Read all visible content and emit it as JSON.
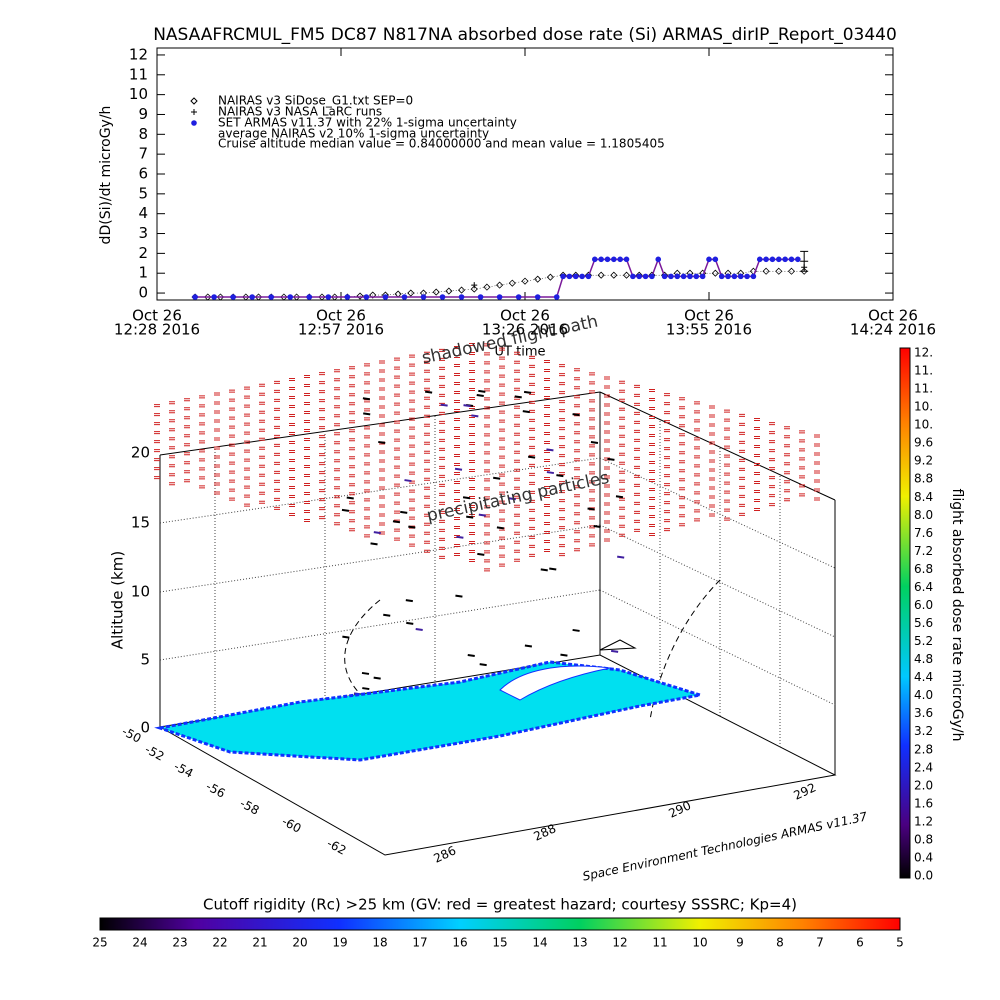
{
  "chart_data": {
    "type": "scatter",
    "title": "NASAAFRCMUL_FM5 DC87 N817NA absorbed dose rate (Si) ARMAS_dirIP_Report_03440",
    "x_label": "UT time",
    "y_label": "dD(Si)/dt microGy/h",
    "annotation": "Cruise altitude median value = 0.84000000 and mean value = 1.1805405",
    "xlim": [
      "2016-10-26 12:28",
      "2016-10-26 14:24"
    ],
    "xticks": [
      {
        "value": "2016-10-26 12:28",
        "label": [
          "Oct 26",
          "12:28 2016"
        ]
      },
      {
        "value": "2016-10-26 12:57",
        "label": [
          "Oct 26",
          "12:57 2016"
        ]
      },
      {
        "value": "2016-10-26 13:26",
        "label": [
          "Oct 26",
          "13:26 2016"
        ]
      },
      {
        "value": "2016-10-26 13:55",
        "label": [
          "Oct 26",
          "13:55 2016"
        ]
      },
      {
        "value": "2016-10-26 14:24",
        "label": [
          "Oct 26",
          "14:24 2016"
        ]
      }
    ],
    "ylim": [
      -0.35,
      12.35
    ],
    "yticks": [
      0,
      1,
      2,
      3,
      4,
      5,
      6,
      7,
      8,
      9,
      10,
      11,
      12
    ],
    "series": [
      {
        "name": "NAIRAS v3 SiDose_G1.txt SEP=0",
        "marker": "diamond",
        "color": "#000000",
        "x": [
          "2016-10-26 12:34",
          "2016-10-26 12:36",
          "2016-10-26 12:38",
          "2016-10-26 12:40",
          "2016-10-26 12:42",
          "2016-10-26 12:44",
          "2016-10-26 12:46",
          "2016-10-26 12:48",
          "2016-10-26 12:50",
          "2016-10-26 12:52",
          "2016-10-26 12:54",
          "2016-10-26 12:56",
          "2016-10-26 12:58",
          "2016-10-26 13:00",
          "2016-10-26 13:02",
          "2016-10-26 13:04",
          "2016-10-26 13:06",
          "2016-10-26 13:08",
          "2016-10-26 13:10",
          "2016-10-26 13:12",
          "2016-10-26 13:14",
          "2016-10-26 13:16",
          "2016-10-26 13:18",
          "2016-10-26 13:20",
          "2016-10-26 13:22",
          "2016-10-26 13:24",
          "2016-10-26 13:26",
          "2016-10-26 13:28",
          "2016-10-26 13:30",
          "2016-10-26 13:32",
          "2016-10-26 13:34",
          "2016-10-26 13:36",
          "2016-10-26 13:38",
          "2016-10-26 13:40",
          "2016-10-26 13:42",
          "2016-10-26 13:44",
          "2016-10-26 13:46",
          "2016-10-26 13:48",
          "2016-10-26 13:50",
          "2016-10-26 13:52",
          "2016-10-26 13:54",
          "2016-10-26 13:56",
          "2016-10-26 13:58",
          "2016-10-26 14:00",
          "2016-10-26 14:02",
          "2016-10-26 14:04",
          "2016-10-26 14:06",
          "2016-10-26 14:08",
          "2016-10-26 14:10"
        ],
        "values": [
          -0.2,
          -0.2,
          -0.2,
          -0.2,
          -0.2,
          -0.2,
          -0.2,
          -0.2,
          -0.2,
          -0.2,
          -0.2,
          -0.2,
          -0.2,
          -0.15,
          -0.1,
          -0.1,
          -0.05,
          0,
          0,
          0.05,
          0.1,
          0.15,
          0.2,
          0.3,
          0.4,
          0.5,
          0.6,
          0.7,
          0.8,
          0.9,
          0.9,
          0.9,
          0.9,
          0.9,
          0.9,
          0.9,
          0.9,
          0.9,
          1.0,
          1.0,
          1.0,
          1.0,
          1.0,
          1.0,
          1.1,
          1.1,
          1.1,
          1.1,
          1.1
        ]
      },
      {
        "name": "NAIRAS v3 NASA LaRC runs",
        "marker": "plus",
        "color": "#000000",
        "x": [
          "2016-10-26 13:18",
          "2016-10-26 14:10"
        ],
        "values": [
          0.4,
          1.3
        ]
      },
      {
        "name": "SET ARMAS v11.37 with 22% 1-sigma uncertainty",
        "marker": "circle",
        "color": "#1f1fe0",
        "line_color": "#7a1a9a",
        "x": [
          "2016-10-26 12:34",
          "2016-10-26 12:37",
          "2016-10-26 12:40",
          "2016-10-26 12:43",
          "2016-10-26 12:46",
          "2016-10-26 12:49",
          "2016-10-26 12:52",
          "2016-10-26 12:55",
          "2016-10-26 12:58",
          "2016-10-26 13:01",
          "2016-10-26 13:04",
          "2016-10-26 13:07",
          "2016-10-26 13:10",
          "2016-10-26 13:13",
          "2016-10-26 13:16",
          "2016-10-26 13:19",
          "2016-10-26 13:22",
          "2016-10-26 13:25",
          "2016-10-26 13:28",
          "2016-10-26 13:31",
          "2016-10-26 13:32",
          "2016-10-26 13:33",
          "2016-10-26 13:34",
          "2016-10-26 13:35",
          "2016-10-26 13:36",
          "2016-10-26 13:37",
          "2016-10-26 13:38",
          "2016-10-26 13:39",
          "2016-10-26 13:40",
          "2016-10-26 13:41",
          "2016-10-26 13:42",
          "2016-10-26 13:43",
          "2016-10-26 13:44",
          "2016-10-26 13:45",
          "2016-10-26 13:46",
          "2016-10-26 13:47",
          "2016-10-26 13:48",
          "2016-10-26 13:49",
          "2016-10-26 13:50",
          "2016-10-26 13:51",
          "2016-10-26 13:52",
          "2016-10-26 13:53",
          "2016-10-26 13:54",
          "2016-10-26 13:55",
          "2016-10-26 13:56",
          "2016-10-26 13:57",
          "2016-10-26 13:58",
          "2016-10-26 13:59",
          "2016-10-26 14:00",
          "2016-10-26 14:01",
          "2016-10-26 14:02",
          "2016-10-26 14:03",
          "2016-10-26 14:04",
          "2016-10-26 14:05",
          "2016-10-26 14:06",
          "2016-10-26 14:07",
          "2016-10-26 14:08",
          "2016-10-26 14:09"
        ],
        "values": [
          -0.2,
          -0.2,
          -0.2,
          -0.2,
          -0.2,
          -0.2,
          -0.2,
          -0.2,
          -0.2,
          -0.2,
          -0.2,
          -0.2,
          -0.2,
          -0.2,
          -0.2,
          -0.2,
          -0.2,
          -0.2,
          -0.2,
          -0.2,
          0.84,
          0.84,
          0.84,
          0.84,
          0.84,
          1.7,
          1.7,
          1.7,
          1.7,
          1.7,
          1.7,
          0.84,
          0.84,
          0.84,
          0.84,
          1.7,
          0.84,
          0.84,
          0.84,
          0.84,
          0.84,
          0.84,
          0.84,
          1.7,
          1.7,
          0.84,
          0.84,
          0.84,
          0.84,
          0.84,
          0.84,
          1.7,
          1.7,
          1.7,
          1.7,
          1.7,
          1.7,
          1.7
        ]
      },
      {
        "name": "average NAIRAS v2 10% 1-sigma uncertainty",
        "marker": "errorbar",
        "color": "#000000",
        "x": [
          "2016-10-26 14:10"
        ],
        "values": [
          1.6
        ],
        "errors": [
          0.5
        ]
      }
    ]
  },
  "perspective_plot": {
    "labels": {
      "shadowed": "shadowed flight path",
      "precipitating": "precipitating particles",
      "z_axis": "Altitude (km)",
      "credit": "Space Environment Technologies ARMAS v11.37"
    },
    "zticks": [
      "20",
      "15",
      "10",
      "5",
      "0"
    ],
    "lat_ticks": [
      "-50",
      "-52",
      "-54",
      "-56",
      "-58",
      "-60",
      "-62"
    ],
    "lon_ticks": [
      "286",
      "288",
      "290",
      "292"
    ],
    "dose_colorbar": {
      "title": "flight absorbed dose rate microGy/h",
      "labels": [
        "12.",
        "11.",
        "11.",
        "10.",
        "10.",
        "9.6",
        "9.2",
        "8.8",
        "8.4",
        "8.0",
        "7.6",
        "7.2",
        "6.8",
        "6.4",
        "6.0",
        "5.6",
        "5.2",
        "4.8",
        "4.4",
        "4.0",
        "3.6",
        "3.2",
        "2.8",
        "2.4",
        "2.0",
        "1.6",
        "1.2",
        "0.8",
        "0.4",
        "0.0"
      ]
    },
    "rigidity_colorbar": {
      "title": "Cutoff rigidity (Rc) >25 km (GV: red = greatest hazard; courtesy SSSRC; Kp=4)",
      "labels": [
        "25",
        "24",
        "23",
        "22",
        "21",
        "20",
        "19",
        "18",
        "17",
        "16",
        "15",
        "14",
        "13",
        "12",
        "11",
        "10",
        "9",
        "8",
        "7",
        "6",
        "5"
      ]
    }
  }
}
